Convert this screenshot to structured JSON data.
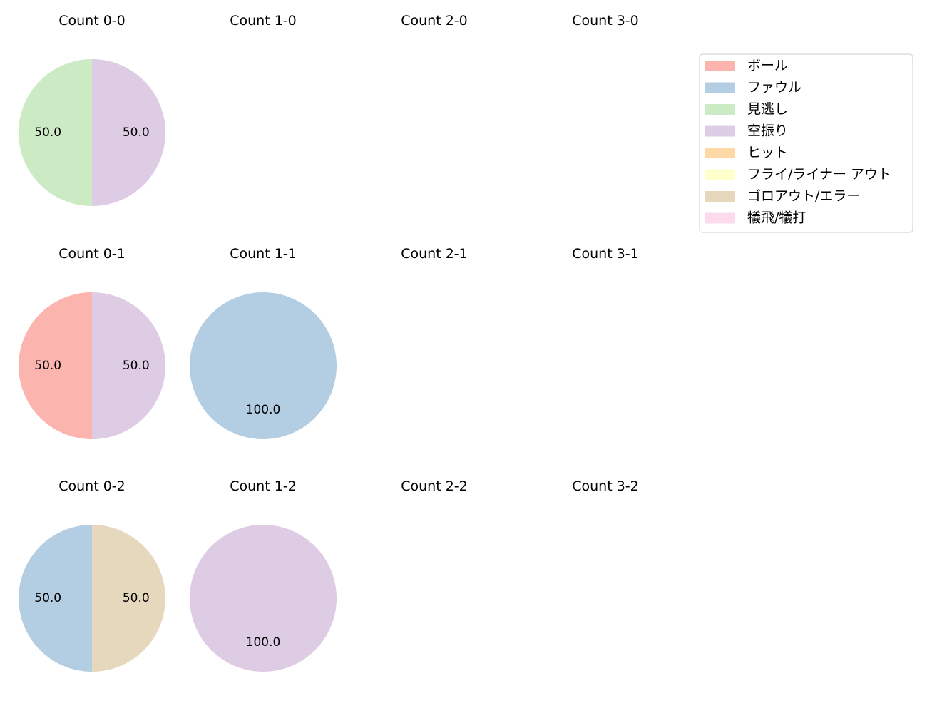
{
  "chart_data": {
    "type": "pie",
    "legend": {
      "placement": "top-right",
      "entries": [
        {
          "label": "ボール",
          "color": "#fbb4ae"
        },
        {
          "label": "ファウル",
          "color": "#b3cde3"
        },
        {
          "label": "見逃し",
          "color": "#ccebc5"
        },
        {
          "label": "空振り",
          "color": "#decbe4"
        },
        {
          "label": "ヒット",
          "color": "#fed9a6"
        },
        {
          "label": "フライ/ライナー アウト",
          "color": "#ffffcc"
        },
        {
          "label": "ゴロアウト/エラー",
          "color": "#e5d8bd"
        },
        {
          "label": "犠飛/犠打",
          "color": "#fddaec"
        }
      ]
    },
    "panels": [
      {
        "title": "Count 0-0",
        "slices": [
          {
            "category": "見逃し",
            "value": 50.0
          },
          {
            "category": "空振り",
            "value": 50.0
          }
        ]
      },
      {
        "title": "Count 1-0",
        "slices": []
      },
      {
        "title": "Count 2-0",
        "slices": []
      },
      {
        "title": "Count 3-0",
        "slices": []
      },
      {
        "title": "Count 0-1",
        "slices": [
          {
            "category": "ボール",
            "value": 50.0
          },
          {
            "category": "空振り",
            "value": 50.0
          }
        ]
      },
      {
        "title": "Count 1-1",
        "slices": [
          {
            "category": "ファウル",
            "value": 100.0
          }
        ]
      },
      {
        "title": "Count 2-1",
        "slices": []
      },
      {
        "title": "Count 3-1",
        "slices": []
      },
      {
        "title": "Count 0-2",
        "slices": [
          {
            "category": "ファウル",
            "value": 50.0
          },
          {
            "category": "ゴロアウト/エラー",
            "value": 50.0
          }
        ]
      },
      {
        "title": "Count 1-2",
        "slices": [
          {
            "category": "空振り",
            "value": 100.0
          }
        ]
      },
      {
        "title": "Count 2-2",
        "slices": []
      },
      {
        "title": "Count 3-2",
        "slices": []
      }
    ]
  }
}
